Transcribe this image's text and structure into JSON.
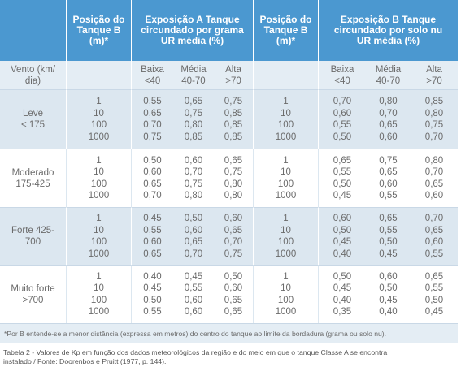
{
  "header": {
    "position_a": [
      "Posição do",
      "Tanque B",
      "(m)*"
    ],
    "exposure_a": [
      "Exposição A Tanque",
      "circundado por grama",
      "UR média (%)"
    ],
    "position_b": [
      "Posição do",
      "Tanque B",
      "(m)*"
    ],
    "exposure_b": [
      "Exposição B Tanque",
      "circundado por solo nu",
      "UR média (%)"
    ]
  },
  "subheader": {
    "wind": [
      "Vento (km/",
      "dia)"
    ],
    "levels_a": [
      [
        "Baixa",
        "<40"
      ],
      [
        "Média",
        "40-70"
      ],
      [
        "Alta",
        ">70"
      ]
    ],
    "levels_b": [
      [
        "Baixa",
        "<40"
      ],
      [
        "Média",
        "40-70"
      ],
      [
        "Alta",
        ">70"
      ]
    ]
  },
  "groups": [
    {
      "label": [
        "Leve",
        "< 175"
      ],
      "positions_a": [
        "1",
        "10",
        "100",
        "1000"
      ],
      "a": [
        [
          "0,55",
          "0,65",
          "0,75"
        ],
        [
          "0,65",
          "0,75",
          "0,85"
        ],
        [
          "0,70",
          "0,80",
          "0,85"
        ],
        [
          "0,75",
          "0,85",
          "0,85"
        ]
      ],
      "positions_b": [
        "1",
        "10",
        "100",
        "1000"
      ],
      "b": [
        [
          "0,70",
          "0,80",
          "0,85"
        ],
        [
          "0,60",
          "0,70",
          "0,80"
        ],
        [
          "0,55",
          "0,65",
          "0,75"
        ],
        [
          "0,50",
          "0,60",
          "0,70"
        ]
      ]
    },
    {
      "label": [
        "Moderado",
        "175-425"
      ],
      "positions_a": [
        "1",
        "10",
        "100",
        "1000"
      ],
      "a": [
        [
          "0,50",
          "0,60",
          "0,65"
        ],
        [
          "0,60",
          "0,70",
          "0,75"
        ],
        [
          "0,65",
          "0,75",
          "0,80"
        ],
        [
          "0,70",
          "0,80",
          "0,80"
        ]
      ],
      "positions_b": [
        "1",
        "10",
        "100",
        "1000"
      ],
      "b": [
        [
          "0,65",
          "0,75",
          "0,80"
        ],
        [
          "0,55",
          "0,65",
          "0,70"
        ],
        [
          "0,50",
          "0,60",
          "0,65"
        ],
        [
          "0,45",
          "0,55",
          "0,60"
        ]
      ]
    },
    {
      "label": [
        "Forte 425-",
        "700"
      ],
      "positions_a": [
        "1",
        "10",
        "100",
        "1000"
      ],
      "a": [
        [
          "0,45",
          "0,50",
          "0,60"
        ],
        [
          "0,55",
          "0,60",
          "0,65"
        ],
        [
          "0,60",
          "0,65",
          "0,70"
        ],
        [
          "0,65",
          "0,70",
          "0,75"
        ]
      ],
      "positions_b": [
        "1",
        "10",
        "100",
        "1000"
      ],
      "b": [
        [
          "0,60",
          "0,65",
          "0,70"
        ],
        [
          "0,50",
          "0,55",
          "0,65"
        ],
        [
          "0,45",
          "0,50",
          "0,60"
        ],
        [
          "0,40",
          "0,45",
          "0,55"
        ]
      ]
    },
    {
      "label": [
        "Muito forte",
        ">700"
      ],
      "positions_a": [
        "1",
        "10",
        "100",
        "1000"
      ],
      "a": [
        [
          "0,40",
          "0,45",
          "0,50"
        ],
        [
          "0,45",
          "0,55",
          "0,60"
        ],
        [
          "0,50",
          "0,60",
          "0,65"
        ],
        [
          "0,55",
          "0,60",
          "0,65"
        ]
      ],
      "positions_b": [
        "1",
        "10",
        "100",
        "1000"
      ],
      "b": [
        [
          "0,50",
          "0,60",
          "0,65"
        ],
        [
          "0,45",
          "0,50",
          "0,55"
        ],
        [
          "0,40",
          "0,45",
          "0,50"
        ],
        [
          "0,35",
          "0,40",
          "0,45"
        ]
      ]
    }
  ],
  "footnote": "*Por B entende-se a menor distância (expressa em metros) do centro do tanque ao limite da bordadura (grama ou solo nu).",
  "caption": [
    "Tabela 2 - Valores de Kp em função dos dados meteorológicos da região e do meio em que o tanque Classe A se encontra",
    "instalado / Fonte: Doorenbos e Pruitt (1977, p. 144)."
  ]
}
